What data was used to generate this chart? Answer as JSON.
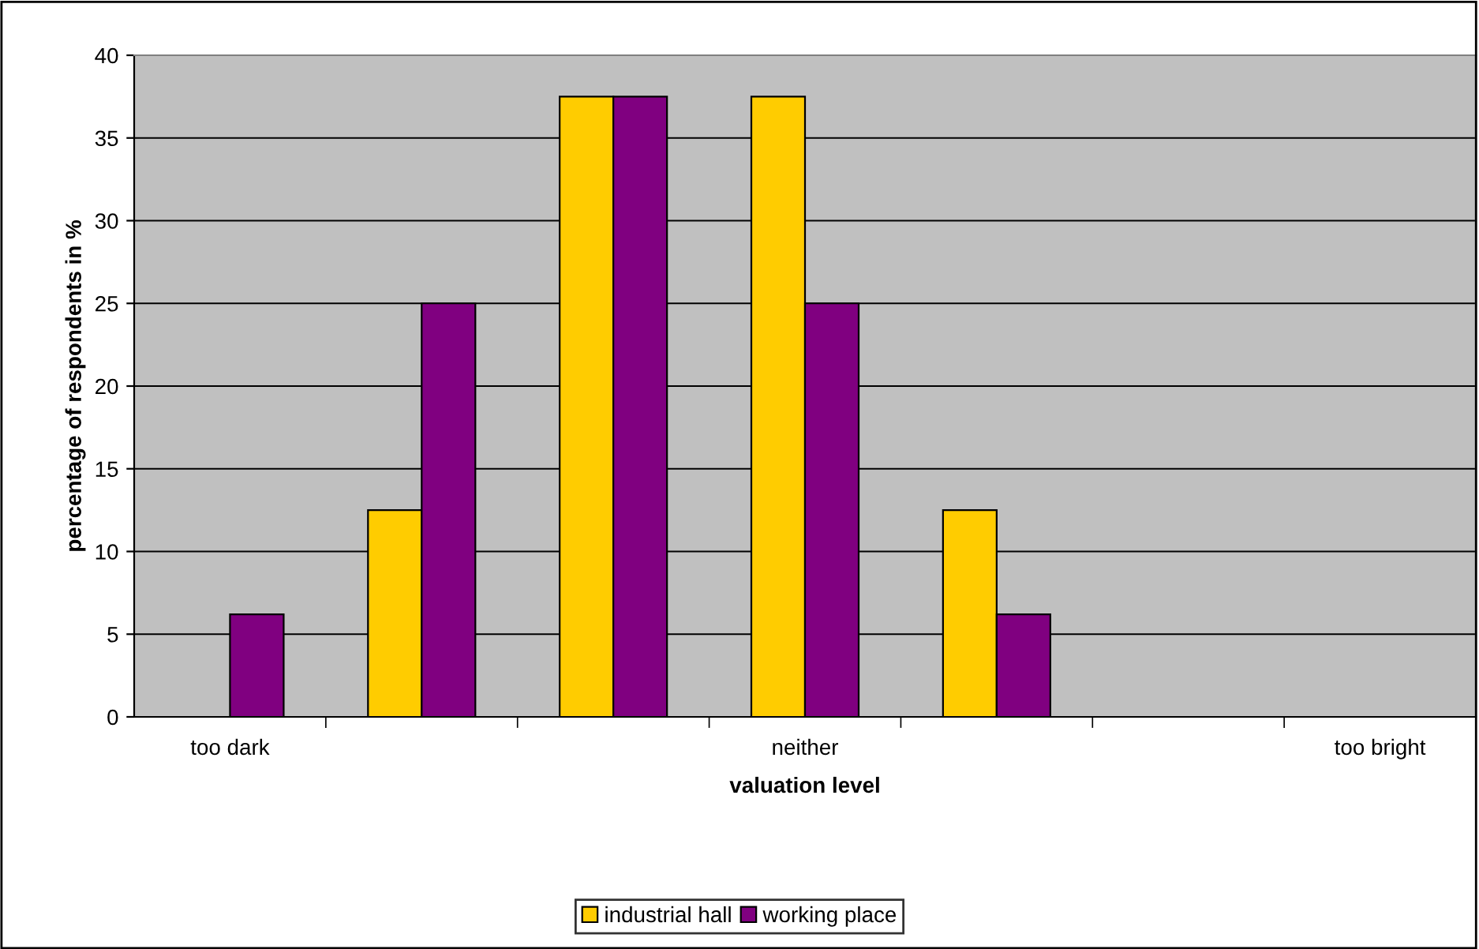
{
  "chart_data": {
    "type": "bar",
    "xlabel": "valuation level",
    "ylabel": "percentage of respondents in %",
    "categories": [
      "too dark",
      null,
      null,
      "neither",
      null,
      null,
      "too bright"
    ],
    "series": [
      {
        "name": "industrial hall",
        "color": "#ffcc00",
        "values": [
          null,
          12.5,
          37.5,
          37.5,
          12.5,
          null,
          null
        ]
      },
      {
        "name": "working place",
        "color": "#800080",
        "values": [
          6.2,
          25,
          37.5,
          25,
          6.2,
          null,
          null
        ]
      }
    ],
    "ylim": [
      0,
      40
    ],
    "yticks": [
      0,
      5,
      10,
      15,
      20,
      25,
      30,
      35,
      40
    ],
    "grid": "y",
    "legend": "bottom"
  }
}
